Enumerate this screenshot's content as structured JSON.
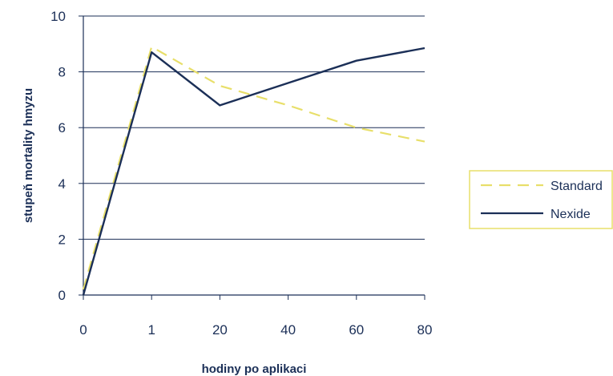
{
  "chart_data": {
    "type": "line",
    "categories": [
      "0",
      "1",
      "20",
      "40",
      "60",
      "80"
    ],
    "xlabel": "hodiny po aplikaci",
    "ylabel": "stupeň mortality hmyzu",
    "ylim": [
      0,
      10
    ],
    "yticks": [
      "0",
      "2",
      "4",
      "6",
      "8",
      "10"
    ],
    "grid": true,
    "legend_position": "right",
    "series": [
      {
        "name": "Standard",
        "style": "dashed",
        "color": "#e8df6a",
        "points": [
          [
            0,
            0.2
          ],
          [
            1,
            8.9
          ],
          [
            20,
            7.5
          ],
          [
            40,
            6.8
          ],
          [
            60,
            6.0
          ],
          [
            80,
            5.5
          ]
        ]
      },
      {
        "name": "Nexide",
        "style": "solid",
        "color": "#1b2f57",
        "points": [
          [
            0,
            0.0
          ],
          [
            1,
            8.7
          ],
          [
            20,
            6.8
          ],
          [
            40,
            7.6
          ],
          [
            60,
            8.4
          ],
          [
            80,
            8.85
          ]
        ]
      }
    ]
  }
}
